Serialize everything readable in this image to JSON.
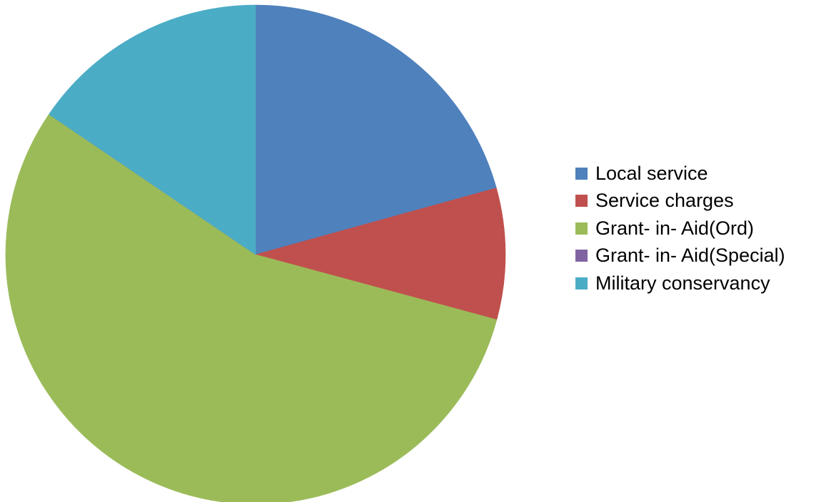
{
  "chart_data": {
    "type": "pie",
    "title": "",
    "start_angle_deg": 0,
    "direction": "clockwise",
    "legend_position": "right",
    "slices": [
      {
        "label": "Local service",
        "value": 20.7,
        "color": "#4F81BD"
      },
      {
        "label": "Service charges",
        "value": 8.5,
        "color": "#C0504D"
      },
      {
        "label": "Grant- in- Aid(Ord)",
        "value": 55.3,
        "color": "#9BBB59"
      },
      {
        "label": "Grant- in- Aid(Special)",
        "value": 0.0,
        "color": "#8064A2"
      },
      {
        "label": "Military conservancy",
        "value": 15.5,
        "color": "#4BACC6"
      }
    ]
  }
}
